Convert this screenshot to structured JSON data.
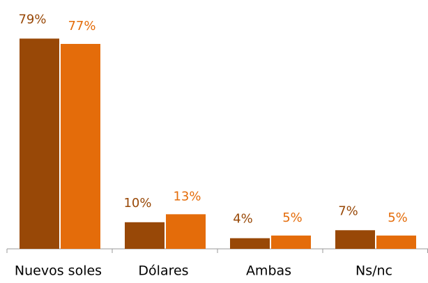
{
  "chart_data": {
    "type": "bar",
    "categories": [
      "Nuevos soles",
      "Dólares",
      "Ambas",
      "Ns/nc"
    ],
    "series": [
      {
        "color": "#984807",
        "values": [
          79,
          10,
          4,
          7
        ],
        "value_labels": [
          "79%",
          "10%",
          "4%",
          "7%"
        ]
      },
      {
        "color": "#e46c0a",
        "values": [
          77,
          13,
          5,
          5
        ],
        "value_labels": [
          "77%",
          "13%",
          "5%",
          "5%"
        ]
      }
    ],
    "ylim": [
      0,
      93.5
    ]
  }
}
